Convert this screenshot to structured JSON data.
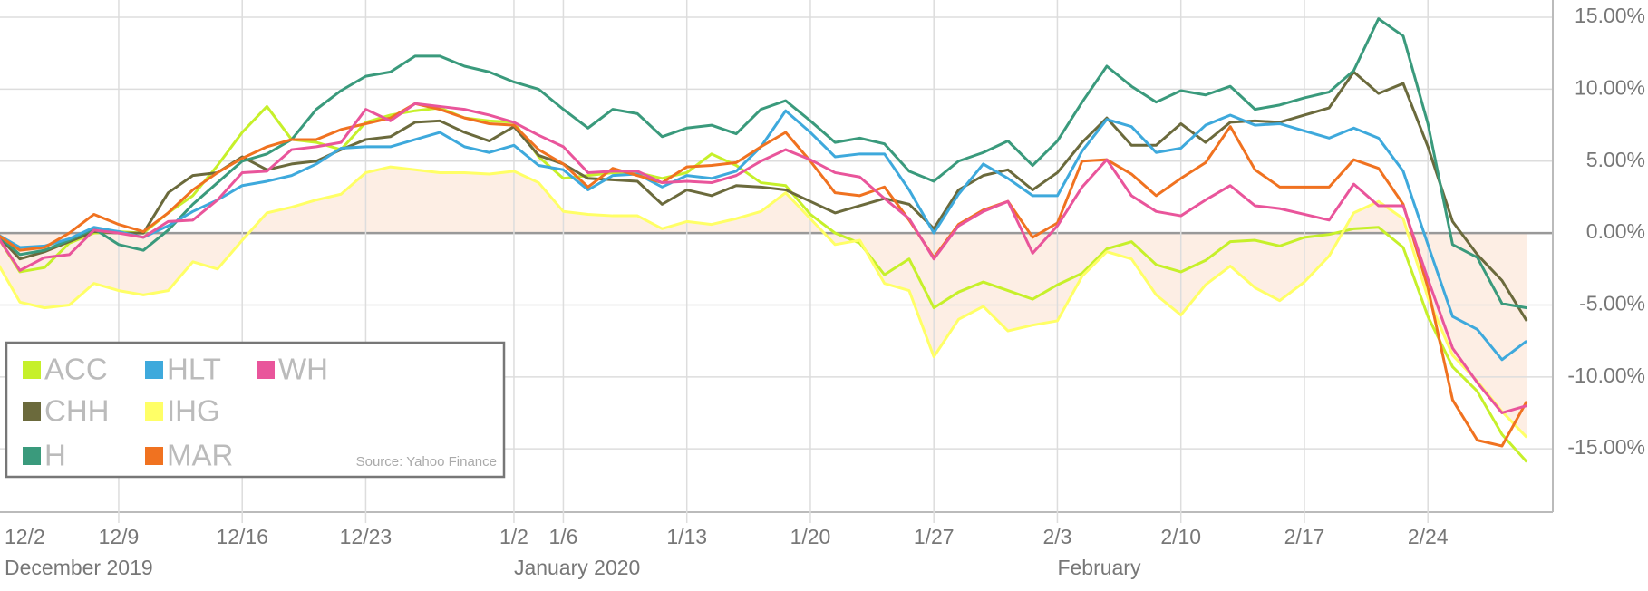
{
  "chart_data": {
    "type": "line",
    "categories": [
      "12/2",
      null,
      null,
      null,
      null,
      "12/9",
      null,
      null,
      null,
      null,
      "12/16",
      null,
      null,
      null,
      null,
      "12/23",
      null,
      null,
      null,
      null,
      null,
      "1/2",
      null,
      "1/6",
      null,
      null,
      null,
      null,
      "1/13",
      null,
      null,
      null,
      null,
      "1/20",
      null,
      null,
      null,
      null,
      "1/27",
      null,
      null,
      null,
      null,
      "2/3",
      null,
      null,
      null,
      null,
      "2/10",
      null,
      null,
      null,
      null,
      "2/17",
      null,
      null,
      null,
      null,
      "2/24",
      null,
      null,
      null,
      null
    ],
    "month_labels": [
      {
        "label": "December 2019",
        "index": 0
      },
      {
        "label": "January 2020",
        "index": 21
      },
      {
        "label": "February",
        "index": 43
      }
    ],
    "source": "Source: Yahoo Finance",
    "ylim": [
      -19.4,
      16.2
    ],
    "yticks": [
      {
        "value": -15,
        "label": "-15.00%"
      },
      {
        "value": -10,
        "label": "-10.00%"
      },
      {
        "value": -5,
        "label": "-5.00%"
      },
      {
        "value": 0,
        "label": "0.00%"
      },
      {
        "value": 5,
        "label": "5.00%"
      },
      {
        "value": 10,
        "label": "10.00%"
      },
      {
        "value": 15,
        "label": "15.00%"
      }
    ],
    "grid": true,
    "legend": "bottom-left",
    "series": [
      {
        "name": "ACC",
        "color": "#c6f02a",
        "values": [
          0,
          -2.7,
          -2.4,
          -0.7,
          0,
          0.1,
          0,
          1.4,
          2.6,
          4.7,
          7.0,
          8.8,
          6.5,
          6.3,
          5.8,
          7.7,
          8.2,
          8.5,
          8.7,
          8.0,
          7.8,
          7.7,
          5.3,
          3.8,
          4.0,
          4.2,
          4.2,
          3.8,
          4.2,
          5.5,
          4.7,
          3.5,
          3.3,
          1.3,
          0,
          -0.7,
          -2.9,
          -1.8,
          -5.2,
          -4.1,
          -3.4,
          -4.0,
          -4.6,
          -3.6,
          -2.8,
          -1.1,
          -0.6,
          -2.2,
          -2.7,
          -1.9,
          -0.6,
          -0.5,
          -0.9,
          -0.3,
          -0.1,
          0.3,
          0.4,
          -1.0,
          -5.8,
          -9.3,
          -11.0,
          -14.0,
          -15.9
        ]
      },
      {
        "name": "CHH",
        "color": "#6b6a3c",
        "values": [
          0,
          -1.8,
          -1.3,
          -0.6,
          0.1,
          0,
          0,
          2.8,
          4.0,
          4.2,
          5.3,
          4.4,
          4.8,
          5.0,
          5.8,
          6.5,
          6.7,
          7.7,
          7.8,
          7.0,
          6.4,
          7.4,
          5.4,
          4.8,
          3.8,
          3.7,
          3.6,
          2.0,
          3.0,
          2.6,
          3.3,
          3.2,
          3.0,
          2.2,
          1.4,
          1.9,
          2.4,
          2.0,
          0.3,
          3.0,
          4.0,
          4.4,
          3.0,
          4.2,
          6.3,
          8.0,
          6.1,
          6.1,
          7.6,
          6.3,
          7.7,
          7.8,
          7.7,
          8.2,
          8.7,
          11.2,
          9.7,
          10.4,
          6.0,
          0.8,
          -1.5,
          -3.3,
          -6.1
        ]
      },
      {
        "name": "H",
        "color": "#3a9a7c",
        "values": [
          0,
          -1.5,
          -1.2,
          -0.5,
          0.3,
          -0.8,
          -1.2,
          0.2,
          2,
          3.5,
          5,
          5.5,
          6.5,
          8.6,
          9.9,
          10.9,
          11.2,
          12.3,
          12.3,
          11.6,
          11.2,
          10.5,
          10.0,
          8.6,
          7.3,
          8.6,
          8.3,
          6.7,
          7.3,
          7.5,
          6.9,
          8.6,
          9.2,
          7.8,
          6.3,
          6.6,
          6.2,
          4.3,
          3.6,
          5.0,
          5.6,
          6.4,
          4.7,
          6.4,
          9.1,
          11.6,
          10.2,
          9.1,
          9.9,
          9.6,
          10.2,
          8.6,
          8.9,
          9.4,
          9.8,
          11.3,
          14.9,
          13.7,
          7.6,
          -0.8,
          -1.7,
          -4.9,
          -5.2
        ]
      },
      {
        "name": "HLT",
        "color": "#3ea9dc",
        "values": [
          0,
          -1.0,
          -0.9,
          -0.4,
          0.4,
          0.1,
          -0.3,
          0.5,
          1.5,
          2.3,
          3.3,
          3.6,
          4.0,
          4.8,
          5.9,
          6.0,
          6.0,
          6.5,
          7.0,
          6.0,
          5.6,
          6.1,
          4.7,
          4.4,
          3.0,
          4.0,
          4.1,
          3.2,
          4.0,
          3.8,
          4.3,
          6.0,
          8.5,
          7.0,
          5.3,
          5.5,
          5.5,
          3.0,
          0.0,
          2.7,
          4.8,
          3.8,
          2.6,
          2.6,
          5.7,
          7.9,
          7.4,
          5.6,
          5.9,
          7.5,
          8.2,
          7.5,
          7.6,
          7.1,
          6.6,
          7.3,
          6.6,
          4.3,
          -0.8,
          -5.8,
          -6.7,
          -8.8,
          -7.5
        ]
      },
      {
        "name": "IHG",
        "color": "#ffff66",
        "area_color": "#fdeee4",
        "values": [
          -1.8,
          -4.8,
          -5.2,
          -5.0,
          -3.5,
          -4.0,
          -4.3,
          -4.0,
          -2.0,
          -2.5,
          -0.5,
          1.4,
          1.8,
          2.3,
          2.7,
          4.2,
          4.6,
          4.4,
          4.2,
          4.2,
          4.1,
          4.3,
          3.5,
          1.5,
          1.3,
          1.2,
          1.2,
          0.3,
          0.8,
          0.6,
          1.0,
          1.5,
          2.8,
          1.0,
          -0.8,
          -0.5,
          -3.5,
          -4.0,
          -8.6,
          -6.0,
          -5.1,
          -6.8,
          -6.4,
          -6.1,
          -3.0,
          -1.3,
          -1.8,
          -4.3,
          -5.7,
          -3.6,
          -2.3,
          -3.8,
          -4.7,
          -3.4,
          -1.6,
          1.4,
          2.2,
          1.0,
          -4.5,
          -8.5,
          -10.3,
          -12.4,
          -14.2
        ]
      },
      {
        "name": "MAR",
        "color": "#f07220",
        "values": [
          0,
          -1.2,
          -1.0,
          0,
          1.3,
          0.6,
          0.1,
          1.4,
          3.0,
          4.2,
          5.2,
          6.0,
          6.5,
          6.5,
          7.2,
          7.6,
          8.0,
          9.0,
          8.6,
          8.0,
          7.6,
          7.5,
          5.8,
          4.8,
          3.2,
          4.5,
          4.0,
          3.5,
          4.6,
          4.7,
          4.9,
          6.0,
          7.0,
          5.0,
          2.8,
          2.6,
          3.2,
          0.9,
          -1.7,
          0.6,
          1.6,
          2.2,
          -0.3,
          0.7,
          5.0,
          5.1,
          4.1,
          2.6,
          3.8,
          4.9,
          7.4,
          4.4,
          3.2,
          3.2,
          3.2,
          5.1,
          4.5,
          2.0,
          -3.8,
          -11.6,
          -14.4,
          -14.8,
          -11.7
        ]
      },
      {
        "name": "WH",
        "color": "#e9559b",
        "values": [
          0,
          -2.6,
          -1.7,
          -1.5,
          0.2,
          0,
          -0.3,
          0.8,
          0.9,
          2.3,
          4.2,
          4.3,
          5.8,
          6.0,
          6.3,
          8.6,
          7.8,
          9.0,
          8.8,
          8.6,
          8.2,
          7.7,
          6.8,
          6.0,
          4.2,
          4.3,
          4.3,
          3.5,
          3.6,
          3.5,
          4.0,
          5.0,
          5.8,
          5.1,
          4.2,
          3.9,
          2.4,
          1.0,
          -1.8,
          0.5,
          1.5,
          2.2,
          -1.4,
          0.5,
          3.2,
          5.1,
          2.6,
          1.5,
          1.2,
          2.3,
          3.3,
          1.9,
          1.7,
          1.3,
          0.9,
          3.4,
          1.9,
          1.9,
          -3.2,
          -8.0,
          -10.4,
          -12.5,
          -12.0
        ]
      }
    ]
  }
}
